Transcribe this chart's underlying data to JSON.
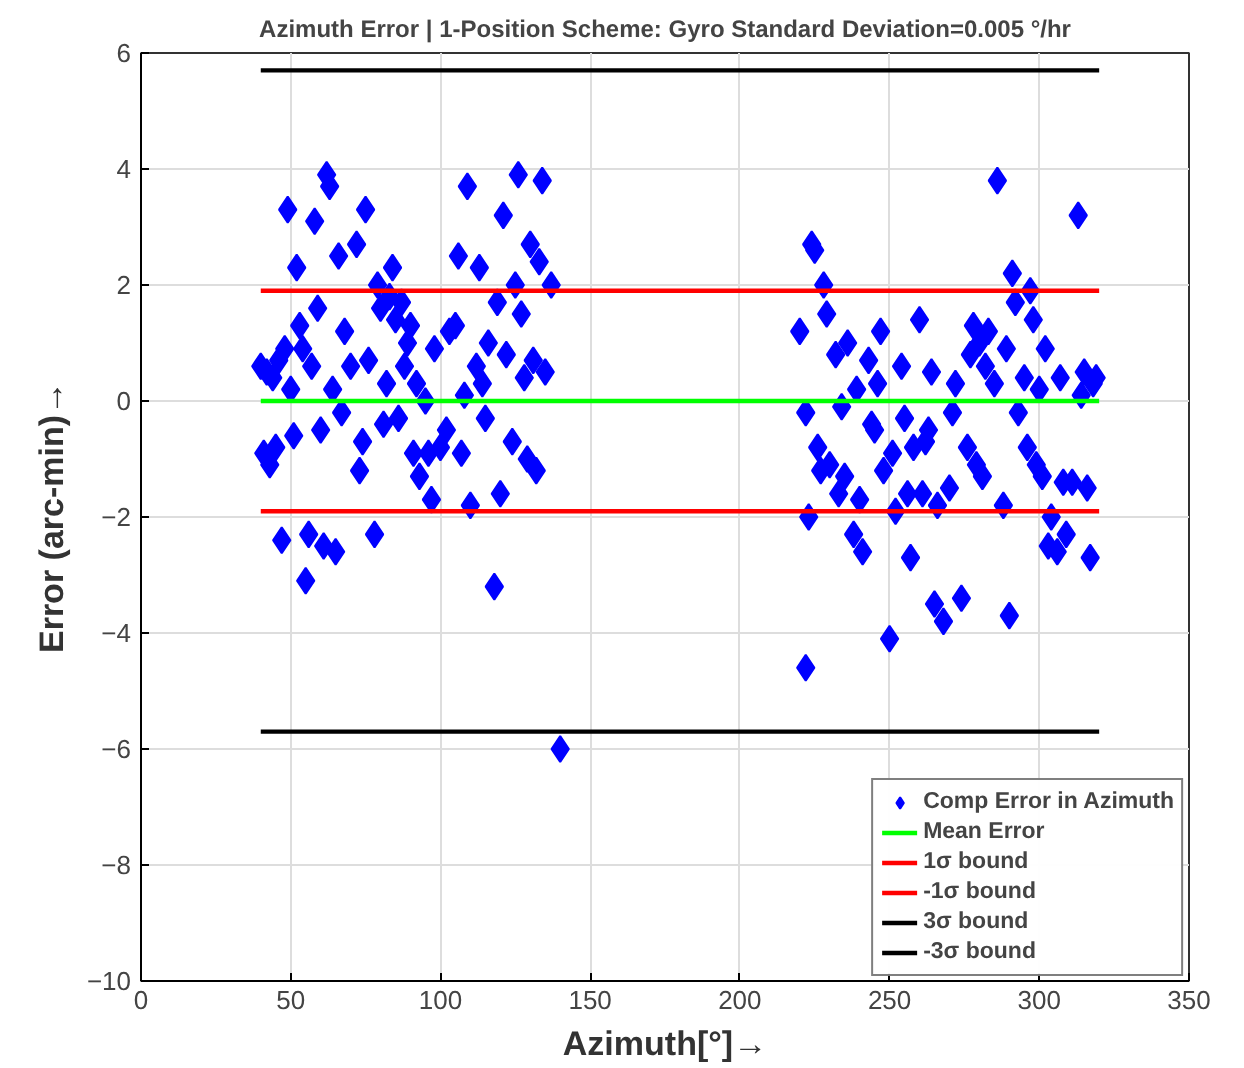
{
  "chart_data": {
    "type": "scatter",
    "title": "Azimuth Error | 1-Position Scheme: Gyro Standard Deviation=0.005 °/hr",
    "xlabel": "Azimuth[°]→",
    "ylabel": "Error (arc-min)→",
    "xlim": [
      0,
      350
    ],
    "xticks": [
      0,
      50,
      100,
      150,
      200,
      250,
      300,
      350
    ],
    "ylim": [
      -10,
      6
    ],
    "yticks": [
      -10,
      -8,
      -6,
      -4,
      -2,
      0,
      2,
      4,
      6
    ],
    "grid": true,
    "legend": "bottom right",
    "series": [
      {
        "name": "Comp Error in Azimuth",
        "marker": "diamond",
        "color": "#0000ff",
        "x": [
          40,
          41,
          42,
          43,
          44,
          45,
          46,
          47,
          48,
          49,
          50,
          51,
          52,
          53,
          54,
          55,
          56,
          57,
          58,
          59,
          60,
          61,
          62,
          63,
          64,
          65,
          66,
          67,
          68,
          70,
          72,
          73,
          74,
          75,
          76,
          78,
          79,
          80,
          81,
          82,
          83,
          84,
          85,
          86,
          87,
          88,
          89,
          90,
          91,
          92,
          93,
          95,
          96,
          97,
          98,
          100,
          102,
          103,
          105,
          106,
          107,
          108,
          109,
          110,
          112,
          113,
          114,
          115,
          116,
          118,
          119,
          120,
          121,
          122,
          124,
          125,
          126,
          127,
          128,
          129,
          130,
          131,
          132,
          133,
          134,
          135,
          137,
          140,
          220,
          222,
          222,
          223,
          224,
          225,
          226,
          227,
          228,
          229,
          230,
          232,
          233,
          234,
          235,
          236,
          238,
          239,
          240,
          241,
          243,
          244,
          245,
          246,
          247,
          248,
          250,
          251,
          252,
          254,
          255,
          256,
          257,
          258,
          260,
          261,
          262,
          263,
          264,
          265,
          266,
          268,
          270,
          271,
          272,
          274,
          276,
          277,
          278,
          279,
          280,
          281,
          282,
          283,
          285,
          286,
          288,
          289,
          290,
          291,
          292,
          293,
          295,
          296,
          297,
          298,
          299,
          300,
          301,
          302,
          303,
          304,
          306,
          307,
          308,
          309,
          311,
          313,
          314,
          315,
          316,
          317,
          318,
          319
        ],
        "values": [
          0.6,
          -0.9,
          0.5,
          -1.1,
          0.4,
          -0.8,
          0.7,
          -2.4,
          0.9,
          3.3,
          0.2,
          -0.6,
          2.3,
          1.3,
          0.9,
          -3.1,
          -2.3,
          0.6,
          3.1,
          1.6,
          -0.5,
          -2.5,
          3.9,
          3.7,
          0.2,
          -2.6,
          2.5,
          -0.2,
          1.2,
          0.6,
          2.7,
          -1.2,
          -0.7,
          3.3,
          0.7,
          -2.3,
          2.0,
          1.6,
          -0.4,
          0.3,
          1.8,
          2.3,
          1.4,
          -0.3,
          1.7,
          0.6,
          1.0,
          1.3,
          -0.9,
          0.3,
          -1.3,
          0.0,
          -0.9,
          -1.7,
          0.9,
          -0.8,
          -0.5,
          1.2,
          1.3,
          2.5,
          -0.9,
          0.1,
          3.7,
          -1.8,
          0.6,
          2.3,
          0.3,
          -0.3,
          1.0,
          -3.2,
          1.7,
          -1.6,
          3.2,
          0.8,
          -0.7,
          2.0,
          3.9,
          1.5,
          0.4,
          -1.0,
          2.7,
          0.7,
          -1.2,
          2.4,
          3.8,
          0.5,
          2.0,
          -6.0,
          1.2,
          -0.2,
          -4.6,
          -2.0,
          2.7,
          2.6,
          -0.8,
          -1.2,
          2.0,
          1.5,
          -1.1,
          0.8,
          -1.6,
          -0.1,
          -1.3,
          1.0,
          -2.3,
          0.2,
          -1.7,
          -2.6,
          0.7,
          -0.4,
          -0.5,
          0.3,
          1.2,
          -1.2,
          -4.1,
          -0.9,
          -1.9,
          0.6,
          -0.3,
          -1.6,
          -2.7,
          -0.8,
          1.4,
          -1.6,
          -0.7,
          -0.5,
          0.5,
          -3.5,
          -1.8,
          -3.8,
          -1.5,
          -0.2,
          0.3,
          -3.4,
          -0.8,
          0.8,
          1.3,
          -1.1,
          1.0,
          -1.3,
          0.6,
          1.2,
          0.3,
          3.8,
          -1.8,
          0.9,
          -3.7,
          2.2,
          1.7,
          -0.2,
          0.4,
          -0.8,
          1.9,
          1.4,
          -1.1,
          0.2,
          -1.3,
          0.9,
          -2.5,
          -2.0,
          -2.6,
          0.4,
          -1.4,
          -2.3,
          -1.4,
          3.2,
          0.1,
          0.5,
          -1.5,
          -2.7,
          0.3,
          0.4
        ]
      },
      {
        "name": "Mean Error",
        "type": "line",
        "color": "#00ff00",
        "x": [
          40,
          320
        ],
        "values": [
          0.0,
          0.0
        ]
      },
      {
        "name": "1σ bound",
        "type": "line",
        "color": "#ff0000",
        "x": [
          40,
          320
        ],
        "values": [
          1.9,
          1.9
        ]
      },
      {
        "name": "-1σ bound",
        "type": "line",
        "color": "#ff0000",
        "x": [
          40,
          320
        ],
        "values": [
          -1.9,
          -1.9
        ]
      },
      {
        "name": "3σ bound",
        "type": "line",
        "color": "#000000",
        "x": [
          40,
          320
        ],
        "values": [
          5.7,
          5.7
        ]
      },
      {
        "name": "-3σ bound",
        "type": "line",
        "color": "#000000",
        "x": [
          40,
          320
        ],
        "values": [
          -5.7,
          -5.7
        ]
      }
    ]
  }
}
